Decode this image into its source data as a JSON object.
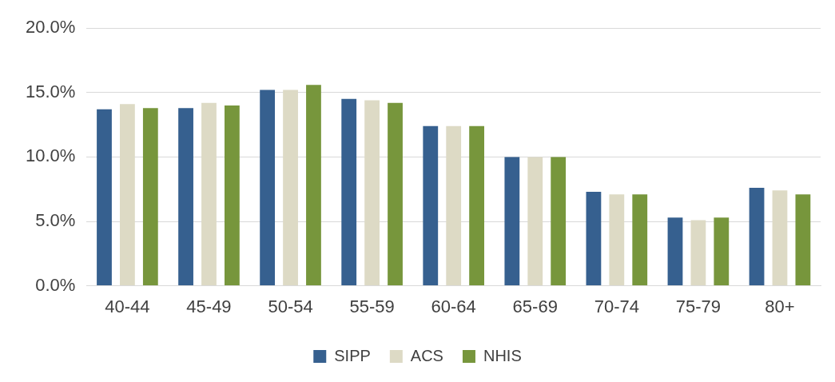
{
  "chart_data": {
    "type": "bar",
    "categories": [
      "40-44",
      "45-49",
      "50-54",
      "55-59",
      "60-64",
      "65-69",
      "70-74",
      "75-79",
      "80+"
    ],
    "series": [
      {
        "name": "SIPP",
        "color": "#36608f",
        "values": [
          13.7,
          13.8,
          15.2,
          14.5,
          12.4,
          10.0,
          7.3,
          5.3,
          7.6
        ]
      },
      {
        "name": "ACS",
        "color": "#dddac5",
        "values": [
          14.1,
          14.2,
          15.2,
          14.4,
          12.4,
          10.0,
          7.1,
          5.1,
          7.4
        ]
      },
      {
        "name": "NHIS",
        "color": "#77963c",
        "values": [
          13.8,
          14.0,
          15.6,
          14.2,
          12.4,
          10.0,
          7.1,
          5.3,
          7.1
        ]
      }
    ],
    "ylim": [
      0,
      20
    ],
    "yticks": [
      {
        "value": 0,
        "label": "0.0%"
      },
      {
        "value": 5,
        "label": "5.0%"
      },
      {
        "value": 10,
        "label": "10.0%"
      },
      {
        "value": 15,
        "label": "15.0%"
      },
      {
        "value": 20,
        "label": "20.0%"
      }
    ],
    "grid": "y",
    "legend": "bottom"
  }
}
